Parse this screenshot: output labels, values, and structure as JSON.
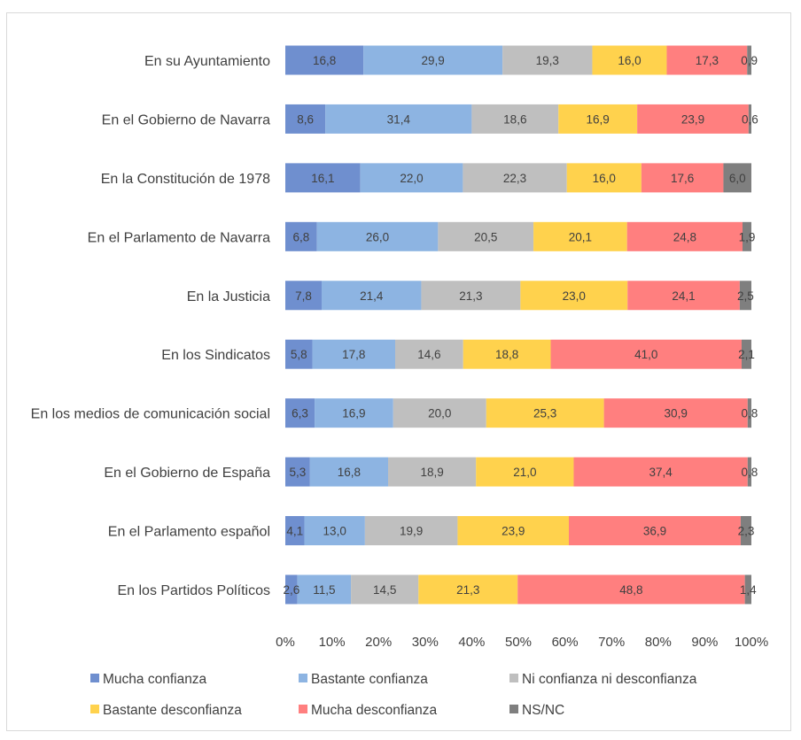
{
  "chart_data": {
    "type": "bar",
    "orientation": "horizontal",
    "stacked": true,
    "percent_stacked": true,
    "title": "",
    "xlabel": "",
    "ylabel": "",
    "xlim": [
      0,
      100
    ],
    "x_ticks": [
      "0%",
      "10%",
      "20%",
      "30%",
      "40%",
      "50%",
      "60%",
      "70%",
      "80%",
      "90%",
      "100%"
    ],
    "grid": false,
    "legend_position": "bottom",
    "categories": [
      "En su Ayuntamiento",
      "En el Gobierno de Navarra",
      "En la Constitución de 1978",
      "En el Parlamento de Navarra",
      "En la Justicia",
      "En los Sindicatos",
      "En los medios de comunicación social",
      "En el Gobierno de España",
      "En el Parlamento español",
      "En los Partidos Políticos"
    ],
    "series": [
      {
        "name": "Mucha confianza",
        "color": "#6f8fcf",
        "values": [
          16.8,
          8.6,
          16.1,
          6.8,
          7.8,
          5.8,
          6.3,
          5.3,
          4.1,
          2.6
        ]
      },
      {
        "name": "Bastante confianza",
        "color": "#8db4e2",
        "values": [
          29.9,
          31.4,
          22.0,
          26.0,
          21.4,
          17.8,
          16.9,
          16.8,
          13.0,
          11.5
        ]
      },
      {
        "name": "Ni confianza ni desconfianza",
        "color": "#bfbfbf",
        "values": [
          19.3,
          18.6,
          22.3,
          20.5,
          21.3,
          14.6,
          20.0,
          18.9,
          19.9,
          14.5
        ]
      },
      {
        "name": "Bastante desconfianza",
        "color": "#ffd24d",
        "values": [
          16.0,
          16.9,
          16.0,
          20.1,
          23.0,
          18.8,
          25.3,
          21.0,
          23.9,
          21.3
        ]
      },
      {
        "name": "Mucha desconfianza",
        "color": "#ff7f7f",
        "values": [
          17.3,
          23.9,
          17.6,
          24.8,
          24.1,
          41.0,
          30.9,
          37.4,
          36.9,
          48.8
        ]
      },
      {
        "name": "NS/NC",
        "color": "#7f7f7f",
        "values": [
          0.9,
          0.6,
          6.0,
          1.9,
          2.5,
          2.1,
          0.8,
          0.8,
          2.3,
          1.4
        ]
      }
    ],
    "data_labels": [
      [
        "16,8",
        "29,9",
        "19,3",
        "16,0",
        "17,3",
        "0,9"
      ],
      [
        "8,6",
        "31,4",
        "18,6",
        "16,9",
        "23,9",
        "0,6"
      ],
      [
        "16,1",
        "22,0",
        "22,3",
        "16,0",
        "17,6",
        "6,0"
      ],
      [
        "6,8",
        "26,0",
        "20,5",
        "20,1",
        "24,8",
        "1,9"
      ],
      [
        "7,8",
        "21,4",
        "21,3",
        "23,0",
        "24,1",
        "2,5"
      ],
      [
        "5,8",
        "17,8",
        "14,6",
        "18,8",
        "41,0",
        "2,1"
      ],
      [
        "6,3",
        "16,9",
        "20,0",
        "25,3",
        "30,9",
        "0,8"
      ],
      [
        "5,3",
        "16,8",
        "18,9",
        "21,0",
        "37,4",
        "0,8"
      ],
      [
        "4,1",
        "13,0",
        "19,9",
        "23,9",
        "36,9",
        "2,3"
      ],
      [
        "2,6",
        "11,5",
        "14,5",
        "21,3",
        "48,8",
        "1,4"
      ]
    ]
  }
}
